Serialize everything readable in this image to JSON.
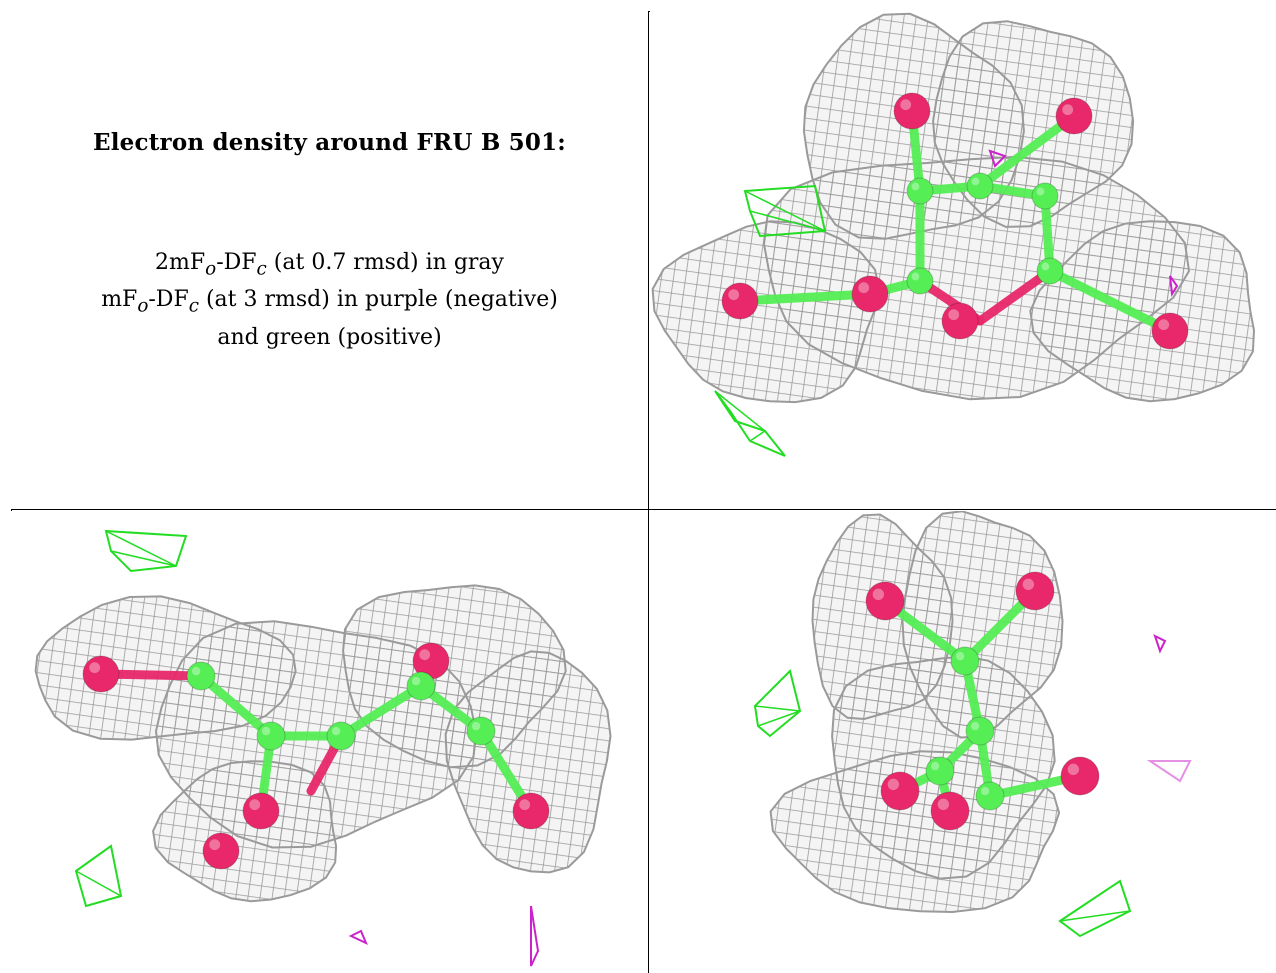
{
  "caption": {
    "title": "Electron density around FRU B 501:",
    "line1_pre": "2mF",
    "line1_sub1": "o",
    "line1_mid": "-DF",
    "line1_sub2": "c",
    "line1_post": " (at 0.7 rmsd) in gray",
    "line2_pre": "mF",
    "line2_sub1": "o",
    "line2_mid": "-DF",
    "line2_sub2": "c",
    "line2_post": " (at 3 rmsd) in purple (negative)",
    "line3": "and green (positive)"
  },
  "colors": {
    "mesh_2fofc": "#9a9a9a",
    "mesh_light": "#d0d0d0",
    "positive_diff": "#22dd22",
    "negative_diff": "#cc22cc",
    "carbon": "#55ee55",
    "oxygen": "#e8286a"
  },
  "views": [
    {
      "name": "view-top-right",
      "icon": "density-mesh-view"
    },
    {
      "name": "view-bottom-left",
      "icon": "density-mesh-view"
    },
    {
      "name": "view-bottom-right",
      "icon": "density-mesh-view"
    }
  ]
}
